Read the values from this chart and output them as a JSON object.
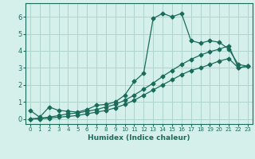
{
  "title": "",
  "xlabel": "Humidex (Indice chaleur)",
  "ylabel": "",
  "xlim": [
    -0.5,
    23.5
  ],
  "ylim": [
    -0.3,
    6.8
  ],
  "xticks": [
    0,
    1,
    2,
    3,
    4,
    5,
    6,
    7,
    8,
    9,
    10,
    11,
    12,
    13,
    14,
    15,
    16,
    17,
    18,
    19,
    20,
    21,
    22,
    23
  ],
  "yticks": [
    0,
    1,
    2,
    3,
    4,
    5,
    6
  ],
  "background_color": "#d5f0eb",
  "grid_color": "#aed4cc",
  "line_color": "#1a6b5a",
  "line1_x": [
    0,
    1,
    2,
    3,
    4,
    5,
    6,
    7,
    8,
    9,
    10,
    11,
    12,
    13,
    14,
    15,
    16,
    17,
    18,
    19,
    20,
    21,
    22,
    23
  ],
  "line1_y": [
    0.5,
    0.1,
    0.7,
    0.5,
    0.45,
    0.4,
    0.55,
    0.8,
    0.85,
    1.0,
    1.4,
    2.2,
    2.7,
    5.9,
    6.2,
    6.0,
    6.2,
    4.6,
    4.45,
    4.6,
    4.5,
    4.1,
    3.2,
    3.1
  ],
  "line2_x": [
    0,
    1,
    2,
    3,
    4,
    5,
    6,
    7,
    8,
    9,
    10,
    11,
    12,
    13,
    14,
    15,
    16,
    17,
    18,
    19,
    20,
    21,
    22,
    23
  ],
  "line2_y": [
    0.0,
    0.0,
    0.05,
    0.1,
    0.15,
    0.2,
    0.3,
    0.4,
    0.5,
    0.65,
    0.85,
    1.1,
    1.4,
    1.7,
    2.0,
    2.3,
    2.6,
    2.85,
    3.0,
    3.2,
    3.4,
    3.55,
    3.0,
    3.1
  ],
  "line3_x": [
    0,
    2,
    3,
    4,
    5,
    6,
    7,
    8,
    9,
    10,
    11,
    12,
    13,
    14,
    15,
    16,
    17,
    18,
    19,
    20,
    21,
    22,
    23
  ],
  "line3_y": [
    0.0,
    0.1,
    0.2,
    0.3,
    0.35,
    0.45,
    0.55,
    0.7,
    0.85,
    1.1,
    1.4,
    1.75,
    2.1,
    2.5,
    2.85,
    3.2,
    3.5,
    3.75,
    3.95,
    4.1,
    4.3,
    3.0,
    3.1
  ]
}
